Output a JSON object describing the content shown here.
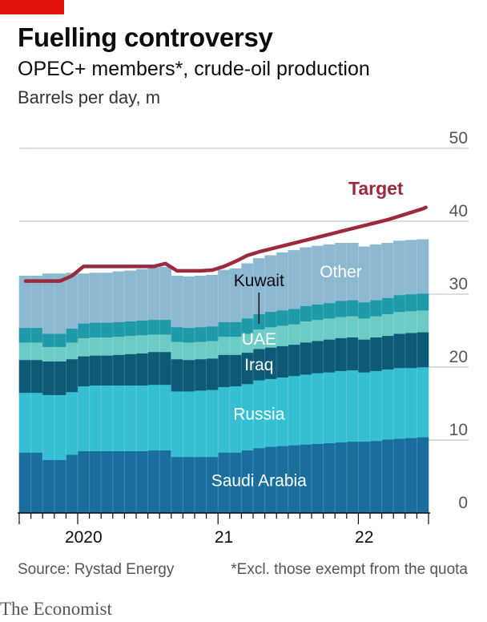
{
  "header": {
    "title": "Fuelling controversy",
    "subtitle": "OPEC+ members*, crude-oil production",
    "unit": "Barrels per day, m"
  },
  "footer": {
    "source": "Source: Rystad Energy",
    "note": "*Excl. those exempt from the quota",
    "brand": "The Economist"
  },
  "colors": {
    "saudi": "#1a6e9e",
    "russia": "#36bfd3",
    "iraq": "#0d5a77",
    "uae": "#6dcbc6",
    "kuwait": "#1f9aa8",
    "other": "#8cb8d1",
    "target": "#9b2a3e",
    "grid": "#c9d2d8",
    "axis": "#0c0c0c",
    "label": "#555555"
  },
  "chart_data": {
    "type": "area",
    "stacked": true,
    "ylim": [
      0,
      50
    ],
    "yticks": [
      0,
      10,
      20,
      30,
      40,
      50
    ],
    "ytick_labels": [
      "0",
      "10",
      "20",
      "30",
      "40",
      "50"
    ],
    "x_start": "2019-08",
    "x_tick_labels": [
      {
        "label": "2020",
        "month": "2020-01"
      },
      {
        "label": "21",
        "month": "2021-01"
      },
      {
        "label": "22",
        "month": "2022-01"
      }
    ],
    "months": [
      "2019-08",
      "2019-09",
      "2019-10",
      "2019-11",
      "2019-12",
      "2020-01",
      "2020-02",
      "2020-03",
      "2020-04",
      "2020-05",
      "2020-06",
      "2020-07",
      "2020-08",
      "2020-09",
      "2020-10",
      "2020-11",
      "2020-12",
      "2021-01",
      "2021-02",
      "2021-03",
      "2021-04",
      "2021-05",
      "2021-06",
      "2021-07",
      "2021-08",
      "2021-09",
      "2021-10",
      "2021-11",
      "2021-12",
      "2022-01",
      "2022-02",
      "2022-03",
      "2022-04",
      "2022-05",
      "2022-06"
    ],
    "series": [
      {
        "name": "Saudi Arabia",
        "key": "saudi",
        "values": [
          8.3,
          8.3,
          7.3,
          7.3,
          8.0,
          8.5,
          8.5,
          8.5,
          8.5,
          8.5,
          8.5,
          8.6,
          8.6,
          7.7,
          7.7,
          7.7,
          7.7,
          8.3,
          8.3,
          8.6,
          8.9,
          9.1,
          9.2,
          9.3,
          9.4,
          9.5,
          9.6,
          9.7,
          9.8,
          9.8,
          9.9,
          10.1,
          10.2,
          10.3,
          10.4
        ]
      },
      {
        "name": "Russia",
        "key": "russia",
        "values": [
          8.2,
          8.2,
          8.9,
          8.9,
          8.6,
          8.9,
          9.0,
          9.0,
          9.0,
          9.0,
          9.0,
          9.0,
          9.0,
          9.0,
          9.0,
          9.1,
          9.2,
          9.0,
          9.1,
          9.1,
          9.3,
          9.3,
          9.4,
          9.5,
          9.6,
          9.7,
          9.7,
          9.8,
          9.8,
          9.5,
          9.6,
          9.6,
          9.7,
          9.6,
          9.6
        ]
      },
      {
        "name": "Iraq",
        "key": "iraq",
        "values": [
          4.5,
          4.5,
          4.6,
          4.6,
          4.5,
          4.1,
          4.1,
          4.1,
          4.2,
          4.3,
          4.4,
          4.5,
          4.5,
          4.4,
          4.3,
          4.3,
          4.3,
          4.4,
          4.3,
          4.3,
          4.3,
          4.3,
          4.3,
          4.3,
          4.4,
          4.4,
          4.5,
          4.5,
          4.5,
          4.5,
          4.6,
          4.6,
          4.7,
          4.8,
          4.8
        ]
      },
      {
        "name": "UAE",
        "key": "uae",
        "values": [
          2.4,
          2.4,
          2.0,
          2.0,
          2.3,
          2.5,
          2.5,
          2.5,
          2.5,
          2.5,
          2.5,
          2.4,
          2.4,
          2.4,
          2.4,
          2.4,
          2.4,
          2.5,
          2.5,
          2.6,
          2.7,
          2.8,
          2.8,
          2.8,
          2.9,
          2.9,
          2.9,
          2.9,
          2.9,
          2.9,
          2.9,
          3.0,
          3.0,
          3.0,
          3.0
        ]
      },
      {
        "name": "Kuwait",
        "key": "kuwait",
        "values": [
          2.0,
          2.0,
          1.8,
          1.8,
          1.9,
          2.0,
          2.0,
          2.0,
          2.0,
          2.0,
          2.0,
          2.0,
          2.0,
          2.0,
          2.0,
          2.0,
          2.0,
          2.0,
          2.0,
          2.1,
          2.1,
          2.1,
          2.1,
          2.1,
          2.1,
          2.1,
          2.1,
          2.2,
          2.2,
          2.2,
          2.2,
          2.2,
          2.3,
          2.3,
          2.3
        ]
      },
      {
        "name": "Other",
        "key": "other",
        "values": [
          7.1,
          7.1,
          8.2,
          8.2,
          7.6,
          6.8,
          6.8,
          6.8,
          6.9,
          6.9,
          7.0,
          7.1,
          7.2,
          7.0,
          7.0,
          7.0,
          7.0,
          7.1,
          7.3,
          7.5,
          7.6,
          7.7,
          7.9,
          8.0,
          8.0,
          8.0,
          8.0,
          7.9,
          7.8,
          7.6,
          7.6,
          7.5,
          7.4,
          7.4,
          7.4
        ]
      }
    ],
    "target": {
      "name": "Target",
      "values": [
        31.8,
        31.8,
        31.8,
        31.8,
        32.5,
        33.8,
        33.8,
        33.8,
        33.8,
        33.8,
        33.8,
        33.8,
        34.2,
        33.2,
        33.2,
        33.2,
        33.3,
        33.8,
        34.5,
        35.3,
        35.8,
        36.2,
        36.6,
        37.0,
        37.4,
        37.8,
        38.2,
        38.6,
        39.0,
        39.4,
        39.8,
        40.2,
        40.7,
        41.2,
        41.7
      ]
    },
    "labels": {
      "saudi": "Saudi Arabia",
      "russia": "Russia",
      "iraq": "Iraq",
      "uae": "UAE",
      "kuwait": "Kuwait",
      "other": "Other",
      "target": "Target"
    }
  }
}
